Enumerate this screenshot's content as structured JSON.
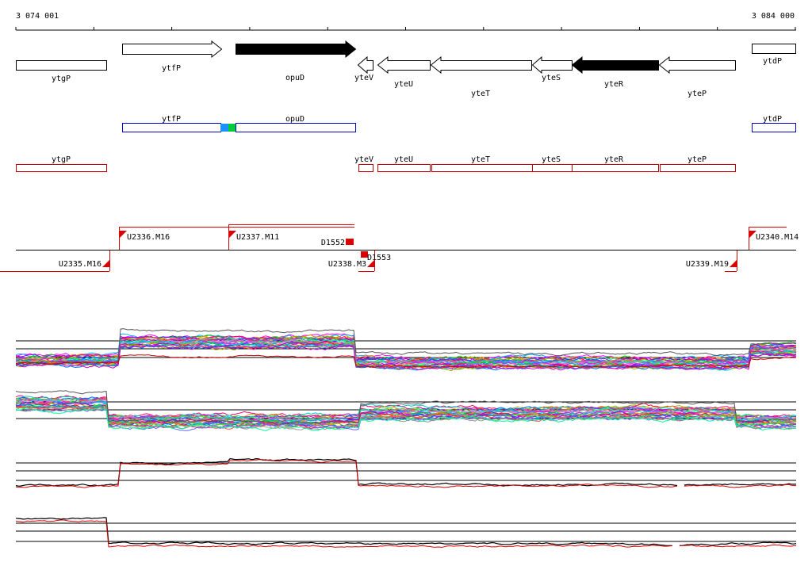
{
  "ruler": {
    "start_label": "3 074 001",
    "end_label": "3 084 000"
  },
  "genes_top": [
    {
      "name": "ytgP",
      "strand": "none",
      "filled": false
    },
    {
      "name": "ytfP",
      "strand": "+",
      "filled": false
    },
    {
      "name": "opuD",
      "strand": "+",
      "filled": true
    },
    {
      "name": "yteV",
      "strand": "-",
      "filled": false
    },
    {
      "name": "yteU",
      "strand": "-",
      "filled": false
    },
    {
      "name": "yteT",
      "strand": "-",
      "filled": false
    },
    {
      "name": "yteS",
      "strand": "-",
      "filled": false
    },
    {
      "name": "yteR",
      "strand": "-",
      "filled": true
    },
    {
      "name": "yteP",
      "strand": "-",
      "filled": false
    },
    {
      "name": "ytdP",
      "strand": "none",
      "filled": false
    }
  ],
  "genes_blue": [
    {
      "name": "ytfP"
    },
    {
      "name": "opuD"
    },
    {
      "name": "ytdP"
    }
  ],
  "genes_red": [
    {
      "name": "ytgP"
    },
    {
      "name": "yteV"
    },
    {
      "name": "yteU"
    },
    {
      "name": "yteT"
    },
    {
      "name": "yteS"
    },
    {
      "name": "yteR"
    },
    {
      "name": "yteP"
    }
  ],
  "transcripts_upper": [
    {
      "label": "U2336.M16"
    },
    {
      "label": "U2337.M11"
    },
    {
      "label": "D1552"
    },
    {
      "label": "U2340.M14"
    }
  ],
  "transcripts_lower": [
    {
      "label": "U2335.M16"
    },
    {
      "label": "U2338.M3"
    },
    {
      "label": "D1553"
    },
    {
      "label": "U2339.M19"
    }
  ],
  "colors": {
    "gene_outline": "#000000",
    "gene_fill_dark": "#000000",
    "blue_track": "#0000cc",
    "red_track": "#cc0000",
    "highlight_blue": "#1e90ff",
    "highlight_green": "#00cc33",
    "profile_red": "#dd0000"
  }
}
